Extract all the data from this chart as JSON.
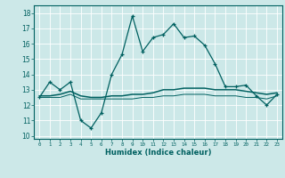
{
  "title": "",
  "xlabel": "Humidex (Indice chaleur)",
  "xlim": [
    -0.5,
    23.5
  ],
  "ylim": [
    9.8,
    18.5
  ],
  "yticks": [
    10,
    11,
    12,
    13,
    14,
    15,
    16,
    17,
    18
  ],
  "xticks": [
    0,
    1,
    2,
    3,
    4,
    5,
    6,
    7,
    8,
    9,
    10,
    11,
    12,
    13,
    14,
    15,
    16,
    17,
    18,
    19,
    20,
    21,
    22,
    23
  ],
  "bg_color": "#cce8e8",
  "grid_color": "#ffffff",
  "line_color": "#006060",
  "line1_x": [
    0,
    1,
    2,
    3,
    4,
    5,
    6,
    7,
    8,
    9,
    10,
    11,
    12,
    13,
    14,
    15,
    16,
    17,
    18,
    19,
    20,
    21,
    22,
    23
  ],
  "line1_y": [
    12.5,
    13.5,
    13.0,
    13.5,
    11.0,
    10.5,
    11.5,
    14.0,
    15.3,
    17.8,
    15.5,
    16.4,
    16.6,
    17.3,
    16.4,
    16.5,
    15.9,
    14.7,
    13.2,
    13.2,
    13.3,
    12.6,
    12.0,
    12.7
  ],
  "line2_x": [
    0,
    1,
    2,
    3,
    4,
    5,
    6,
    7,
    8,
    9,
    10,
    11,
    12,
    13,
    14,
    15,
    16,
    17,
    18,
    19,
    20,
    21,
    22,
    23
  ],
  "line2_y": [
    12.6,
    12.6,
    12.7,
    12.9,
    12.6,
    12.5,
    12.5,
    12.6,
    12.6,
    12.7,
    12.7,
    12.8,
    13.0,
    13.0,
    13.1,
    13.1,
    13.1,
    13.0,
    13.0,
    13.0,
    12.9,
    12.8,
    12.7,
    12.8
  ],
  "line3_x": [
    0,
    1,
    2,
    3,
    4,
    5,
    6,
    7,
    8,
    9,
    10,
    11,
    12,
    13,
    14,
    15,
    16,
    17,
    18,
    19,
    20,
    21,
    22,
    23
  ],
  "line3_y": [
    12.5,
    12.5,
    12.5,
    12.7,
    12.4,
    12.4,
    12.4,
    12.4,
    12.4,
    12.4,
    12.5,
    12.5,
    12.6,
    12.6,
    12.7,
    12.7,
    12.7,
    12.6,
    12.6,
    12.6,
    12.5,
    12.5,
    12.4,
    12.6
  ]
}
